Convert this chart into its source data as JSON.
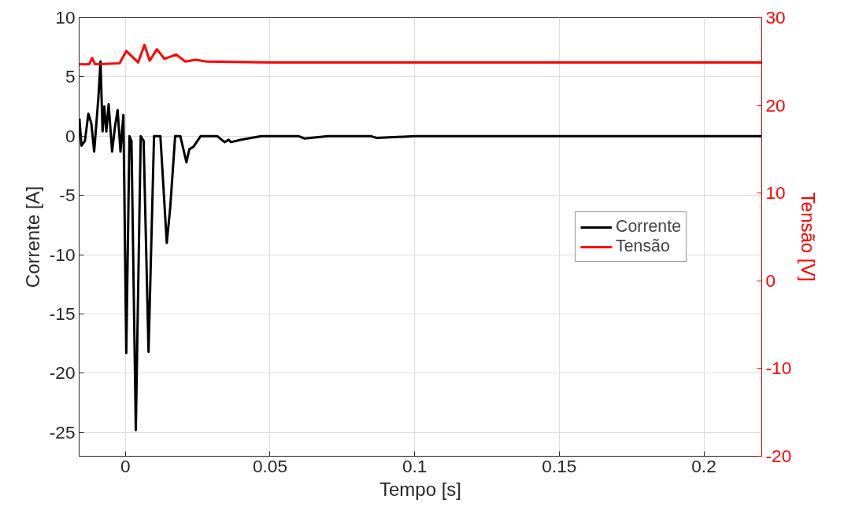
{
  "chart_data": {
    "type": "line",
    "xlabel": "Tempo [s]",
    "ylabel": "Corrente [A]",
    "y2label": "Tensão [V]",
    "xlim": [
      -0.016,
      0.22
    ],
    "xticks": [
      0,
      0.05,
      0.1,
      0.15,
      0.2
    ],
    "ylim": [
      -27,
      10
    ],
    "yticks": [
      -25,
      -20,
      -15,
      -10,
      -5,
      0,
      5,
      10
    ],
    "y2lim": [
      -20,
      30
    ],
    "y2ticks": [
      -20,
      -10,
      0,
      10,
      20,
      30
    ],
    "grid": true,
    "legend": "center right",
    "line_style": "solid",
    "series": [
      {
        "name": "Corrente",
        "color": "#000000",
        "x": [
          -0.0159,
          -0.0152,
          -0.014,
          -0.0128,
          -0.0118,
          -0.0108,
          -0.0099,
          -0.0093,
          -0.0086,
          -0.0079,
          -0.0073,
          -0.0066,
          -0.0058,
          -0.0046,
          -0.0036,
          -0.0027,
          -0.0017,
          -0.0007,
          -0.0004,
          0.0003,
          0.0014,
          0.0021,
          0.0036,
          0.0053,
          0.0063,
          0.008,
          0.0099,
          0.0121,
          0.0143,
          0.0155,
          0.0172,
          0.019,
          0.0211,
          0.0221,
          0.0235,
          0.026,
          0.0318,
          0.0343,
          0.0357,
          0.0365,
          0.04,
          0.047,
          0.052,
          0.06,
          0.062,
          0.07,
          0.085,
          0.087,
          0.1,
          0.13,
          0.16,
          0.19,
          0.22
        ],
        "values": [
          1.5,
          -0.8,
          -0.4,
          1.9,
          1.1,
          -1.3,
          1.5,
          3.4,
          6.3,
          0.4,
          2.5,
          0.4,
          2.7,
          -1.3,
          0.8,
          2.2,
          -1.3,
          1.8,
          -4.1,
          -18.3,
          0,
          -0.4,
          -24.8,
          0,
          -0.4,
          -18.2,
          0,
          0,
          -9.0,
          -6.0,
          0,
          0,
          -2.2,
          -1.1,
          -0.9,
          0,
          0,
          -0.5,
          -0.3,
          -0.5,
          -0.3,
          0,
          0,
          0,
          -0.2,
          0,
          0,
          -0.15,
          0,
          0,
          0,
          0,
          0
        ]
      },
      {
        "name": "Tensão",
        "color": "#ff0000",
        "axis": "y2",
        "x": [
          -0.016,
          -0.0125,
          -0.0115,
          -0.0105,
          -0.002,
          0.0003,
          0.0044,
          0.0066,
          0.0084,
          0.0109,
          0.0135,
          0.0176,
          0.0207,
          0.0244,
          0.028,
          0.05,
          0.1,
          0.15,
          0.22
        ],
        "values": [
          24.7,
          24.7,
          25.4,
          24.7,
          24.8,
          26.2,
          24.9,
          26.9,
          25.1,
          26.4,
          25.3,
          25.8,
          25.0,
          25.2,
          25.0,
          24.9,
          24.9,
          24.9,
          24.9
        ]
      }
    ]
  }
}
